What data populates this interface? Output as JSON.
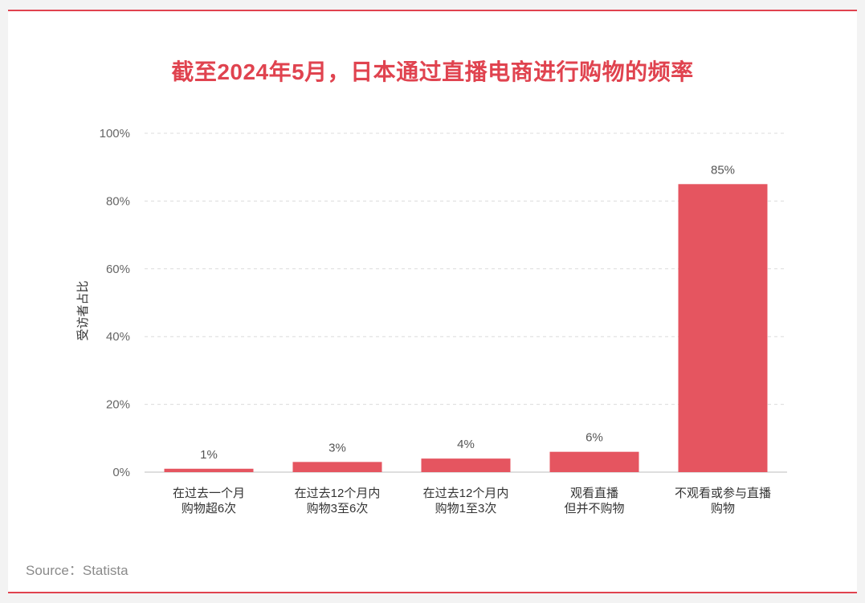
{
  "title": "截至2024年5月，日本通过直播电商进行购物的频率",
  "source": "Source：Statista",
  "colors": {
    "accent": "#e0434f",
    "bar": "#e55560",
    "grid": "#dcdcdc"
  },
  "chart_data": {
    "type": "bar",
    "title": "截至2024年5月，日本通过直播电商进行购物的频率",
    "xlabel": "",
    "ylabel": "受访者占比",
    "ylim": [
      0,
      100
    ],
    "yticks": [
      0,
      20,
      40,
      60,
      80,
      100
    ],
    "ytick_labels": [
      "0%",
      "20%",
      "40%",
      "60%",
      "80%",
      "100%"
    ],
    "grid": true,
    "categories": [
      [
        "在过去一个月",
        "购物超6次"
      ],
      [
        "在过去12个月内",
        "购物3至6次"
      ],
      [
        "在过去12个月内",
        "购物1至3次"
      ],
      [
        "观看直播",
        "但并不购物"
      ],
      [
        "不观看或参与直播",
        "购物"
      ]
    ],
    "values": [
      1,
      3,
      4,
      6,
      85
    ],
    "value_labels": [
      "1%",
      "3%",
      "4%",
      "6%",
      "85%"
    ]
  }
}
